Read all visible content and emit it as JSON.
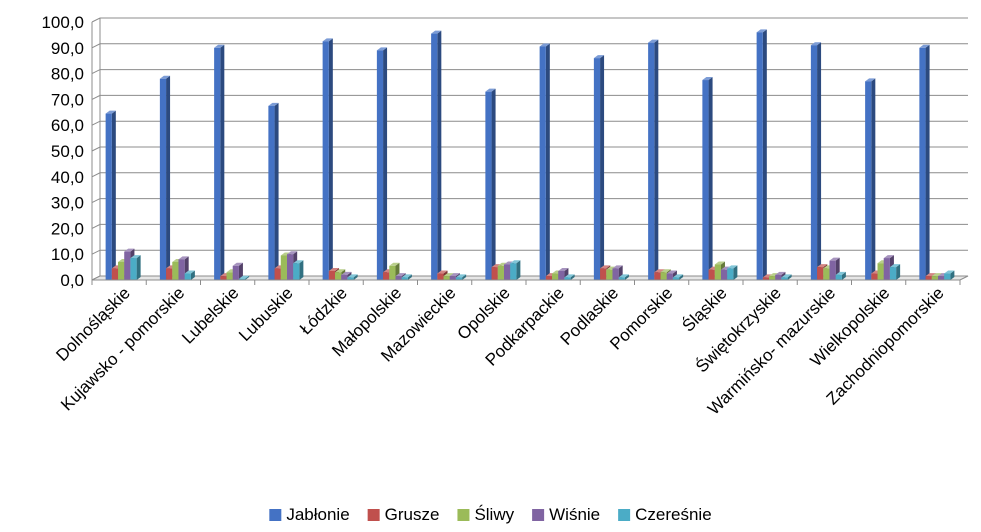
{
  "chart_data": {
    "type": "bar",
    "title": "",
    "xlabel": "",
    "ylabel": "",
    "ylim": [
      0,
      100
    ],
    "y_ticks": [
      "0,0",
      "10,0",
      "20,0",
      "30,0",
      "40,0",
      "50,0",
      "60,0",
      "70,0",
      "80,0",
      "90,0",
      "100,0"
    ],
    "grid": true,
    "legend_position": "bottom",
    "categories": [
      "Dolnośląskie",
      "Kujawsko - pomorskie",
      "Lubelskie",
      "Lubuskie",
      "Łódzkie",
      "Małopolskie",
      "Mazowieckie",
      "Opolskie",
      "Podkarpackie",
      "Podlaskie",
      "Pomorskie",
      "Śląskie",
      "Świętokrzyskie",
      "Warmińsko- mazurskie",
      "Wielkopolskie",
      "Zachodniopomorskie"
    ],
    "series": [
      {
        "name": "Jabłonie",
        "color": "#4472C4",
        "values": [
          64.5,
          78.0,
          90.0,
          67.5,
          92.5,
          89.0,
          95.5,
          73.0,
          90.5,
          86.0,
          92.0,
          77.5,
          96.0,
          91.0,
          77.0,
          90.0
        ]
      },
      {
        "name": "Grusze",
        "color": "#C0504D",
        "values": [
          4.5,
          4.5,
          1.5,
          4.5,
          3.5,
          3.0,
          2.5,
          5.0,
          1.5,
          4.5,
          3.0,
          4.0,
          1.0,
          5.0,
          2.5,
          1.5
        ]
      },
      {
        "name": "Śliwy",
        "color": "#9BBB59",
        "values": [
          7.0,
          7.0,
          3.0,
          9.5,
          3.0,
          5.5,
          1.5,
          5.5,
          2.5,
          4.0,
          3.0,
          6.0,
          1.5,
          4.5,
          6.5,
          1.5
        ]
      },
      {
        "name": "Wiśnie",
        "color": "#8064A2",
        "values": [
          11.0,
          8.0,
          5.5,
          10.0,
          2.0,
          1.5,
          1.5,
          6.0,
          3.5,
          4.5,
          2.5,
          4.0,
          2.0,
          7.5,
          8.5,
          1.5
        ]
      },
      {
        "name": "Czereśnie",
        "color": "#4BACC6",
        "values": [
          8.5,
          2.5,
          0.5,
          6.5,
          1.0,
          1.0,
          1.0,
          6.5,
          1.0,
          1.0,
          1.0,
          4.5,
          1.0,
          2.0,
          5.0,
          2.5
        ]
      }
    ]
  }
}
